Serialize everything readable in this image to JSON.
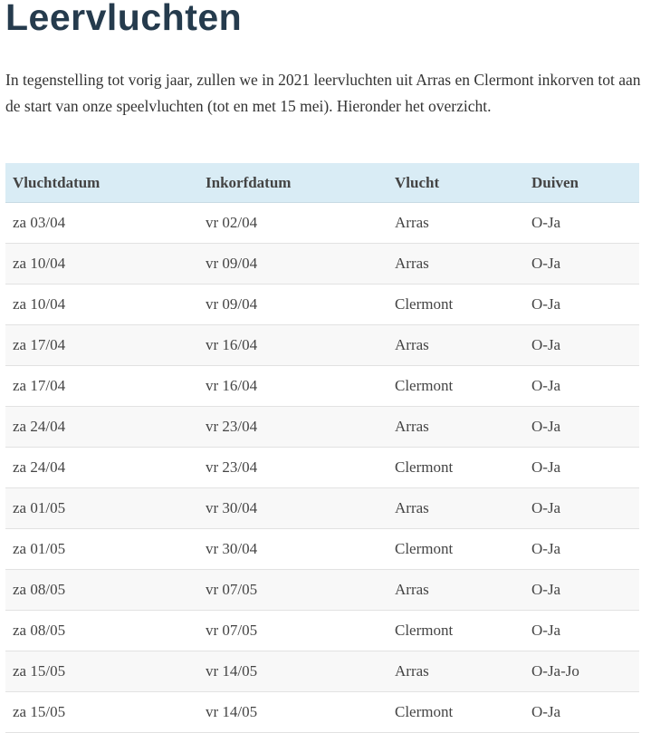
{
  "title": "Leervluchten",
  "intro": "In tegenstelling tot vorig jaar, zullen we in 2021 leervluchten uit Arras en Clermont inkorven tot aan de start van onze speelvluchten (tot en met 15 mei). Hieronder het overzicht.",
  "table": {
    "headers": [
      "Vluchtdatum",
      "Inkorfdatum",
      "Vlucht",
      "Duiven"
    ],
    "rows": [
      [
        "za 03/04",
        "vr 02/04",
        "Arras",
        "O-Ja"
      ],
      [
        "za 10/04",
        "vr 09/04",
        "Arras",
        "O-Ja"
      ],
      [
        "za 10/04",
        "vr 09/04",
        "Clermont",
        "O-Ja"
      ],
      [
        "za 17/04",
        "vr 16/04",
        "Arras",
        "O-Ja"
      ],
      [
        "za 17/04",
        "vr 16/04",
        "Clermont",
        "O-Ja"
      ],
      [
        "za 24/04",
        "vr 23/04",
        "Arras",
        "O-Ja"
      ],
      [
        "za 24/04",
        "vr 23/04",
        "Clermont",
        "O-Ja"
      ],
      [
        "za 01/05",
        "vr 30/04",
        "Arras",
        "O-Ja"
      ],
      [
        "za 01/05",
        "vr 30/04",
        "Clermont",
        "O-Ja"
      ],
      [
        "za 08/05",
        "vr 07/05",
        "Arras",
        "O-Ja"
      ],
      [
        "za 08/05",
        "vr 07/05",
        "Clermont",
        "O-Ja"
      ],
      [
        "za 15/05",
        "vr 14/05",
        "Arras",
        "O-Ja-Jo"
      ],
      [
        "za 15/05",
        "vr 14/05",
        "Clermont",
        "O-Ja"
      ]
    ]
  }
}
